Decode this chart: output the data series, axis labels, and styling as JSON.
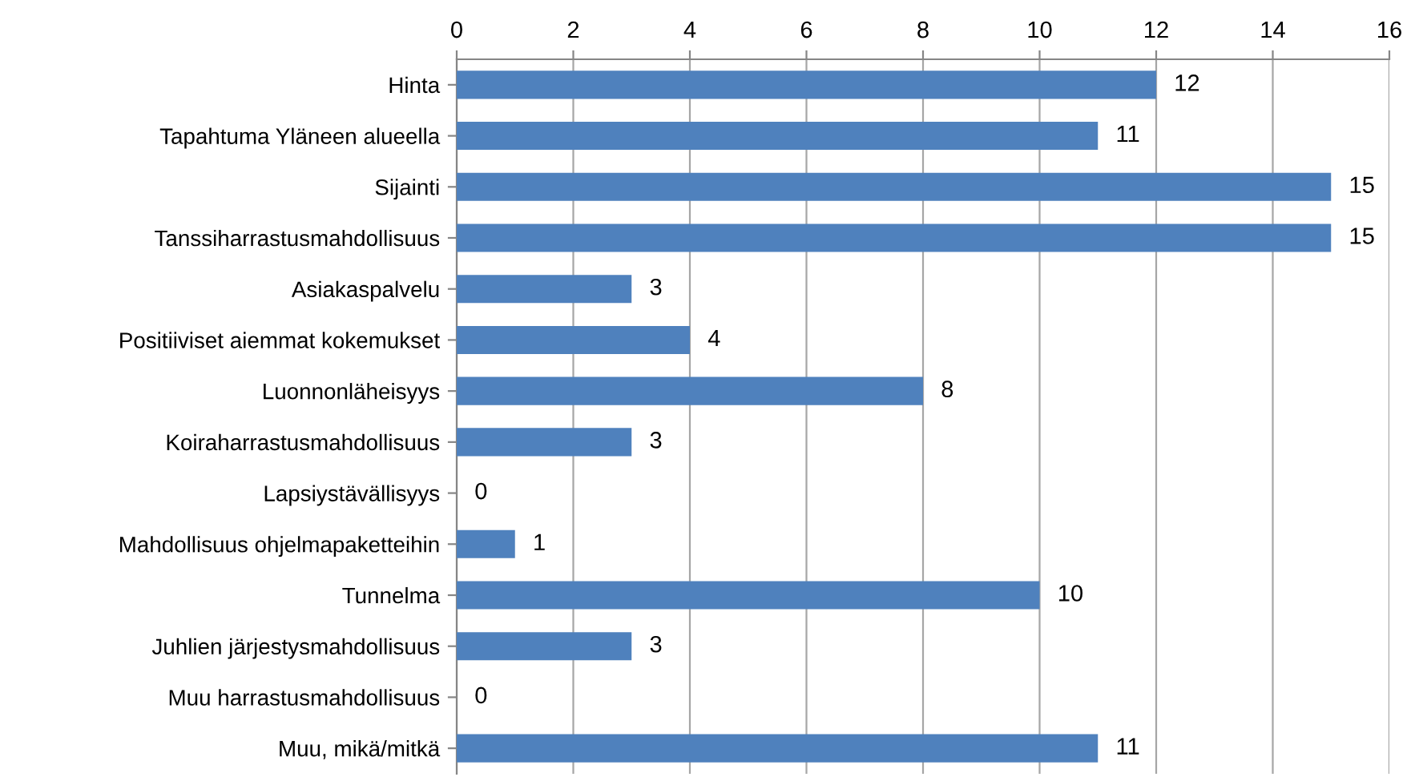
{
  "chart_data": {
    "type": "bar",
    "orientation": "horizontal",
    "categories": [
      "Hinta",
      "Tapahtuma Yläneen alueella",
      "Sijainti",
      "Tanssiharrastusmahdollisuus",
      "Asiakaspalvelu",
      "Positiiviset aiemmat kokemukset",
      "Luonnonläheisyys",
      "Koiraharrastusmahdollisuus",
      "Lapsiystävällisyys",
      "Mahdollisuus ohjelmapaketteihin",
      "Tunnelma",
      "Juhlien järjestysmahdollisuus",
      "Muu harrastusmahdollisuus",
      "Muu, mikä/mitkä"
    ],
    "values": [
      12,
      11,
      15,
      15,
      3,
      4,
      8,
      3,
      0,
      1,
      10,
      3,
      0,
      11
    ],
    "color": "#4f81bd",
    "xlim": [
      0,
      16
    ],
    "xticks": [
      0,
      2,
      4,
      6,
      8,
      10,
      12,
      14,
      16
    ],
    "grid": "x",
    "data_labels": true
  }
}
